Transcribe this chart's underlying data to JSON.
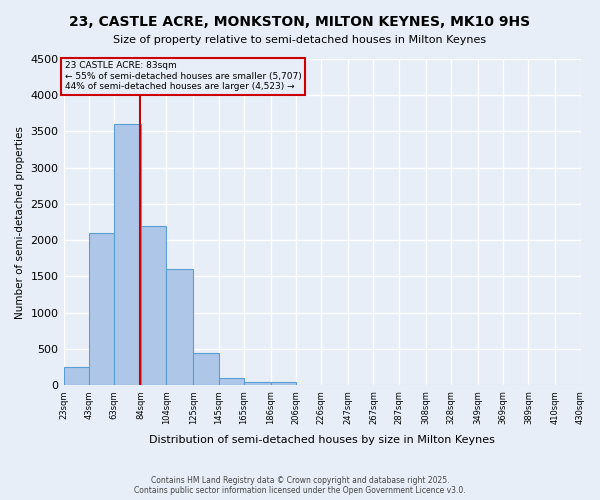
{
  "title": "23, CASTLE ACRE, MONKSTON, MILTON KEYNES, MK10 9HS",
  "subtitle": "Size of property relative to semi-detached houses in Milton Keynes",
  "xlabel": "Distribution of semi-detached houses by size in Milton Keynes",
  "ylabel": "Number of semi-detached properties",
  "bar_color": "#aec6e8",
  "bar_edge_color": "#5a9fd4",
  "background_color": "#e8eef8",
  "grid_color": "#ffffff",
  "annotation_box_color": "#cc0000",
  "annotation_text": "23 CASTLE ACRE: 83sqm",
  "annotation_line1": "← 55% of semi-detached houses are smaller (5,707)",
  "annotation_line2": "44% of semi-detached houses are larger (4,523) →",
  "property_line_x": 83,
  "categories": [
    "23sqm",
    "43sqm",
    "63sqm",
    "84sqm",
    "104sqm",
    "125sqm",
    "145sqm",
    "165sqm",
    "186sqm",
    "206sqm",
    "226sqm",
    "247sqm",
    "267sqm",
    "287sqm",
    "308sqm",
    "328sqm",
    "349sqm",
    "369sqm",
    "389sqm",
    "410sqm",
    "430sqm"
  ],
  "bin_edges": [
    23,
    43,
    63,
    84,
    104,
    125,
    145,
    165,
    186,
    206,
    226,
    247,
    267,
    287,
    308,
    328,
    349,
    369,
    389,
    410,
    430
  ],
  "values": [
    250,
    2100,
    3600,
    2200,
    1600,
    450,
    100,
    50,
    40,
    0,
    0,
    0,
    0,
    0,
    0,
    0,
    0,
    0,
    0,
    0
  ],
  "ylim": [
    0,
    4500
  ],
  "yticks": [
    0,
    500,
    1000,
    1500,
    2000,
    2500,
    3000,
    3500,
    4000,
    4500
  ],
  "footer1": "Contains HM Land Registry data © Crown copyright and database right 2025.",
  "footer2": "Contains public sector information licensed under the Open Government Licence v3.0."
}
